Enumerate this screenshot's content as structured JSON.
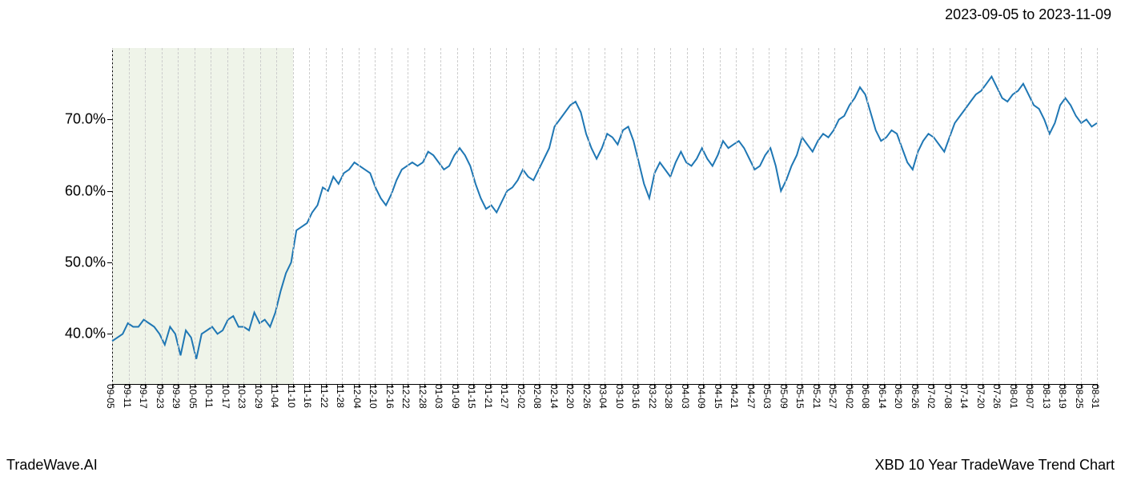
{
  "header": {
    "date_range": "2023-09-05 to 2023-11-09"
  },
  "footer": {
    "left": "TradeWave.AI",
    "right": "XBD 10 Year TradeWave Trend Chart"
  },
  "chart": {
    "type": "line",
    "background_color": "#ffffff",
    "line_color": "#1f77b4",
    "line_width": 2,
    "grid_color": "#cccccc",
    "grid_style": "dashed",
    "highlight_color": "#e8f0e0",
    "highlight_start_idx": 0,
    "highlight_end_idx": 11,
    "ylim": [
      33,
      80
    ],
    "yticks": [
      40.0,
      50.0,
      60.0,
      70.0
    ],
    "ytick_labels": [
      "40.0%",
      "50.0%",
      "60.0%",
      "70.0%"
    ],
    "y_fontsize": 18,
    "x_fontsize": 12,
    "x_labels": [
      "09-05",
      "09-11",
      "09-17",
      "09-23",
      "09-29",
      "10-05",
      "10-11",
      "10-17",
      "10-23",
      "10-29",
      "11-04",
      "11-10",
      "11-16",
      "11-22",
      "11-28",
      "12-04",
      "12-10",
      "12-16",
      "12-22",
      "12-28",
      "01-03",
      "01-09",
      "01-15",
      "01-21",
      "01-27",
      "02-02",
      "02-08",
      "02-14",
      "02-20",
      "02-26",
      "03-04",
      "03-10",
      "03-16",
      "03-22",
      "03-28",
      "04-03",
      "04-09",
      "04-15",
      "04-21",
      "04-27",
      "05-03",
      "05-09",
      "05-15",
      "05-21",
      "05-27",
      "06-02",
      "06-08",
      "06-14",
      "06-20",
      "06-26",
      "07-02",
      "07-08",
      "07-14",
      "07-20",
      "07-26",
      "08-01",
      "08-07",
      "08-13",
      "08-19",
      "08-25",
      "08-31"
    ],
    "values": [
      39.0,
      39.5,
      40.0,
      41.5,
      41.0,
      41.0,
      42.0,
      41.5,
      41.0,
      40.0,
      38.5,
      41.0,
      40.0,
      37.0,
      40.5,
      39.5,
      36.5,
      40.0,
      40.5,
      41.0,
      40.0,
      40.5,
      42.0,
      42.5,
      41.0,
      41.0,
      40.5,
      43.0,
      41.5,
      42.0,
      41.0,
      43.0,
      46.0,
      48.5,
      50.0,
      54.5,
      55.0,
      55.5,
      57.0,
      58.0,
      60.5,
      60.0,
      62.0,
      61.0,
      62.5,
      63.0,
      64.0,
      63.5,
      63.0,
      62.5,
      60.5,
      59.0,
      58.0,
      59.5,
      61.5,
      63.0,
      63.5,
      64.0,
      63.5,
      64.0,
      65.5,
      65.0,
      64.0,
      63.0,
      63.5,
      65.0,
      66.0,
      65.0,
      63.5,
      61.0,
      59.0,
      57.5,
      58.0,
      57.0,
      58.5,
      60.0,
      60.5,
      61.5,
      63.0,
      62.0,
      61.5,
      63.0,
      64.5,
      66.0,
      69.0,
      70.0,
      71.0,
      72.0,
      72.5,
      71.0,
      68.0,
      66.0,
      64.5,
      66.0,
      68.0,
      67.5,
      66.5,
      68.5,
      69.0,
      67.0,
      64.0,
      61.0,
      59.0,
      62.5,
      64.0,
      63.0,
      62.0,
      64.0,
      65.5,
      64.0,
      63.5,
      64.5,
      66.0,
      64.5,
      63.5,
      65.0,
      67.0,
      66.0,
      66.5,
      67.0,
      66.0,
      64.5,
      63.0,
      63.5,
      65.0,
      66.0,
      63.5,
      60.0,
      61.5,
      63.5,
      65.0,
      67.5,
      66.5,
      65.5,
      67.0,
      68.0,
      67.5,
      68.5,
      70.0,
      70.5,
      72.0,
      73.0,
      74.5,
      73.5,
      71.0,
      68.5,
      67.0,
      67.5,
      68.5,
      68.0,
      66.0,
      64.0,
      63.0,
      65.5,
      67.0,
      68.0,
      67.5,
      66.5,
      65.5,
      67.5,
      69.5,
      70.5,
      71.5,
      72.5,
      73.5,
      74.0,
      75.0,
      76.0,
      74.5,
      73.0,
      72.5,
      73.5,
      74.0,
      75.0,
      73.5,
      72.0,
      71.5,
      70.0,
      68.0,
      69.5,
      72.0,
      73.0,
      72.0,
      70.5,
      69.5,
      70.0,
      69.0,
      69.5
    ]
  }
}
